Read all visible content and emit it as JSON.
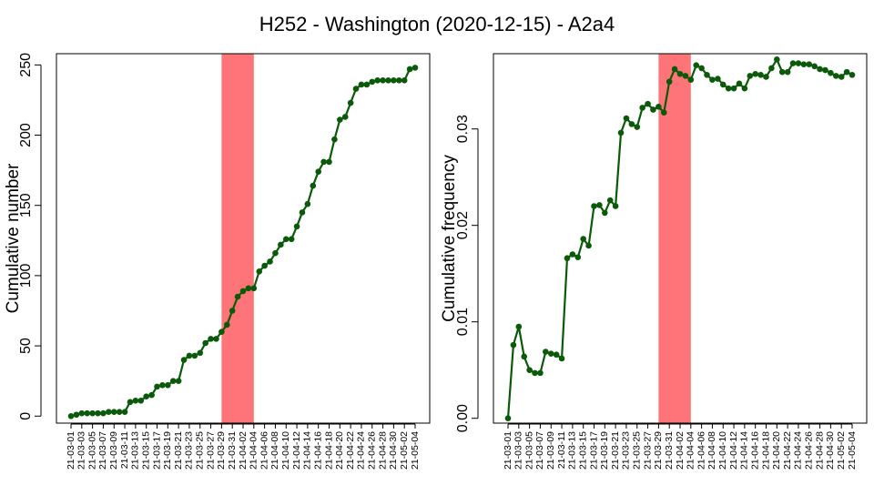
{
  "title": "H252 - Washington (2020-12-15) - A2a4",
  "colors": {
    "line": "#0a5a0a",
    "highlight": "#ff7478",
    "axis": "#000000"
  },
  "chart_data": [
    {
      "type": "line",
      "ylabel": "Cumulative number",
      "ylim": [
        -5,
        258
      ],
      "yticks": [
        0,
        50,
        100,
        150,
        200,
        250
      ],
      "x_tick_labels": [
        "21-03-01",
        "21-03-03",
        "21-03-05",
        "21-03-07",
        "21-03-09",
        "21-03-11",
        "21-03-13",
        "21-03-15",
        "21-03-17",
        "21-03-19",
        "21-03-21",
        "21-03-23",
        "21-03-25",
        "21-03-27",
        "21-03-29",
        "21-03-31",
        "21-04-02",
        "21-04-04",
        "21-04-06",
        "21-04-08",
        "21-04-10",
        "21-04-12",
        "21-04-14",
        "21-04-16",
        "21-04-18",
        "21-04-20",
        "21-04-22",
        "21-04-24",
        "21-04-26",
        "21-04-28",
        "21-04-30",
        "21-05-02",
        "21-05-04"
      ],
      "x_start": "21-03-01",
      "x_end": "21-05-05",
      "highlight_range": [
        "21-03-29",
        "21-04-04"
      ],
      "values": [
        0,
        1,
        2,
        2,
        2,
        2,
        2,
        3,
        3,
        3,
        3,
        10,
        11,
        11,
        14,
        15,
        21,
        22,
        22,
        25,
        25,
        40,
        43,
        43,
        45,
        52,
        55,
        55,
        60,
        65,
        75,
        85,
        89,
        91,
        91,
        103,
        107,
        110,
        116,
        122,
        126,
        126,
        135,
        145,
        151,
        164,
        174,
        181,
        181,
        197,
        211,
        213,
        223,
        233,
        236,
        236,
        238,
        239,
        239,
        239,
        239,
        239,
        239,
        247,
        248
      ]
    },
    {
      "type": "line",
      "ylabel": "Cumulative frequency",
      "ylim": [
        -0.0005,
        0.0378
      ],
      "yticks": [
        0.0,
        0.01,
        0.02,
        0.03
      ],
      "ytick_labels": [
        "0.00",
        "0.01",
        "0.02",
        "0.03"
      ],
      "x_tick_labels": [
        "21-03-01",
        "21-03-03",
        "21-03-05",
        "21-03-07",
        "21-03-09",
        "21-03-11",
        "21-03-13",
        "21-03-15",
        "21-03-17",
        "21-03-19",
        "21-03-21",
        "21-03-23",
        "21-03-25",
        "21-03-27",
        "21-03-29",
        "21-03-31",
        "21-04-02",
        "21-04-04",
        "21-04-06",
        "21-04-08",
        "21-04-10",
        "21-04-12",
        "21-04-14",
        "21-04-16",
        "21-04-18",
        "21-04-20",
        "21-04-22",
        "21-04-24",
        "21-04-26",
        "21-04-28",
        "21-04-30",
        "21-05-02",
        "21-05-04"
      ],
      "x_start": "21-03-01",
      "x_end": "21-05-04",
      "highlight_range": [
        "21-03-29",
        "21-04-04"
      ],
      "values": [
        0.0,
        0.0076,
        0.0095,
        0.0064,
        0.005,
        0.0047,
        0.0047,
        0.0069,
        0.0067,
        0.0066,
        0.0062,
        0.0166,
        0.017,
        0.0167,
        0.0186,
        0.0179,
        0.022,
        0.0221,
        0.0213,
        0.0226,
        0.022,
        0.0296,
        0.0311,
        0.0305,
        0.0302,
        0.0322,
        0.0326,
        0.032,
        0.0323,
        0.0317,
        0.0349,
        0.0362,
        0.0357,
        0.0355,
        0.0351,
        0.0366,
        0.0363,
        0.0356,
        0.0351,
        0.0352,
        0.0346,
        0.0342,
        0.0342,
        0.0347,
        0.0342,
        0.0355,
        0.0357,
        0.0356,
        0.0354,
        0.0363,
        0.0372,
        0.0359,
        0.0359,
        0.0368,
        0.0368,
        0.0367,
        0.0367,
        0.0365,
        0.0362,
        0.0361,
        0.0358,
        0.0355,
        0.0354,
        0.0359,
        0.0356
      ]
    }
  ]
}
